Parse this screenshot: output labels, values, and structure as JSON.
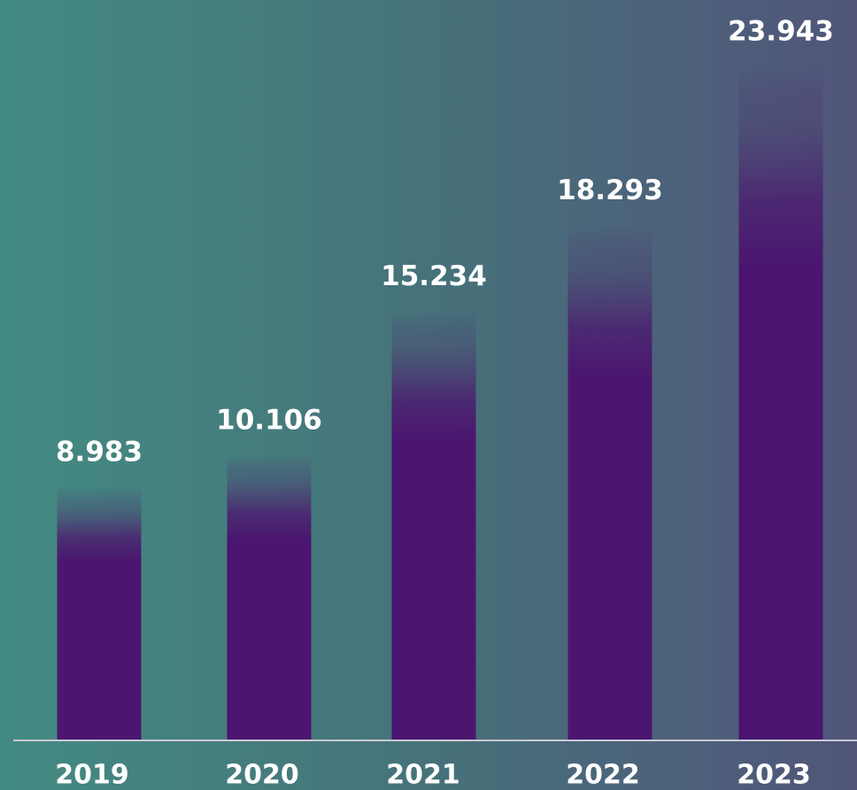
{
  "chart_data": {
    "type": "bar",
    "categories": [
      "2019",
      "2020",
      "2021",
      "2022",
      "2023"
    ],
    "values": [
      8.983,
      10.106,
      15.234,
      18.293,
      23.943
    ],
    "color": "#4b1570"
  }
}
